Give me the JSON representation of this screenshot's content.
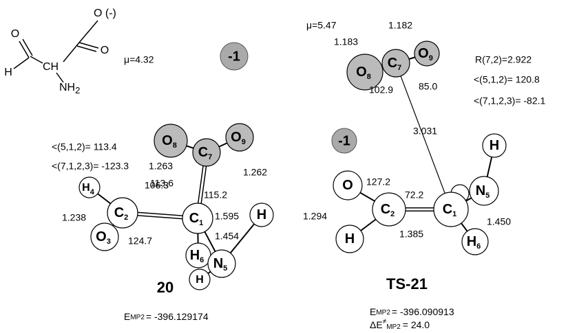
{
  "formula": {
    "o_aldehyde": "O",
    "o_minus": "O (-)",
    "o_acid": "O",
    "h": "H",
    "ch": "CH",
    "nh": "NH",
    "nh_sub": "2"
  },
  "s20": {
    "dipole": "μ=4.32",
    "charge": "-1",
    "angles": [
      "<(5,1,2)= 113.4",
      "<(7,1,2,3)= -123.3"
    ],
    "atoms": [
      {
        "symbol": "O",
        "index": "8"
      },
      {
        "symbol": "C",
        "index": "7"
      },
      {
        "symbol": "O",
        "index": "9"
      },
      {
        "symbol": "H",
        "index": "4"
      },
      {
        "symbol": "C",
        "index": "2"
      },
      {
        "symbol": "C",
        "index": "1"
      },
      {
        "symbol": "O",
        "index": "3"
      },
      {
        "symbol": "H",
        "index": "6"
      },
      {
        "symbol": "N",
        "index": "5"
      },
      {
        "symbol": "H"
      },
      {
        "symbol": "H"
      }
    ],
    "measures": [
      "1.263",
      "113.6",
      "115.2",
      "1.262",
      "106.3",
      "1.595",
      "1.238",
      "124.7",
      "1.454"
    ],
    "label": "20",
    "energy": {
      "symbol": "E",
      "sub": "MP2",
      "value": "= -396.129174"
    }
  },
  "ts21": {
    "dipole": "μ=5.47",
    "charge": "-1",
    "geometry": [
      "R(7,2)=2.922",
      "<(5,1,2)= 120.8",
      "<(7,1,2,3)= -82.1"
    ],
    "atoms": [
      {
        "symbol": "O",
        "index": "8"
      },
      {
        "symbol": "C",
        "index": "7"
      },
      {
        "symbol": "O",
        "index": "9"
      },
      {
        "symbol": "H"
      },
      {
        "symbol": "N",
        "index": "5"
      },
      {
        "symbol": "O"
      },
      {
        "symbol": "C",
        "index": "2"
      },
      {
        "symbol": "C",
        "index": "1"
      },
      {
        "symbol": "H"
      },
      {
        "symbol": "H",
        "index": "6"
      }
    ],
    "measures": [
      "1.183",
      "1.182",
      "102.9",
      "85.0",
      "3.031",
      "127.2",
      "72.2",
      "1.294",
      "1.385",
      "1.450"
    ],
    "label": "TS-21",
    "energy": {
      "symbol": "E",
      "sub": "MP2",
      "value": "= -396.090913"
    },
    "barrier": {
      "symbol": "ΔE",
      "sup": "≠",
      "sub": "MP2",
      "value": "= 24.0"
    }
  }
}
